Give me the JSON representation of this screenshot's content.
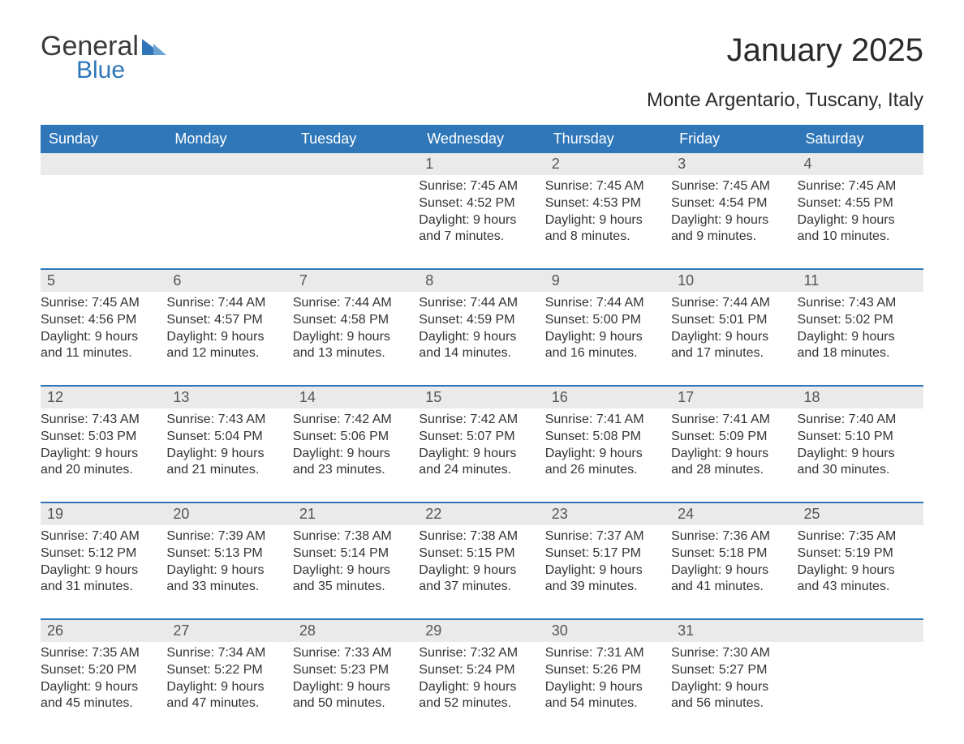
{
  "logo": {
    "word1": "General",
    "word2": "Blue"
  },
  "title": "January 2025",
  "location": "Monte Argentario, Tuscany, Italy",
  "colors": {
    "header_bg": "#2f77b9",
    "header_text": "#ffffff",
    "daynum_bg": "#eaeaea",
    "text": "#333333",
    "border_top": "#2f77b9"
  },
  "day_headers": [
    "Sunday",
    "Monday",
    "Tuesday",
    "Wednesday",
    "Thursday",
    "Friday",
    "Saturday"
  ],
  "weeks": [
    [
      {
        "num": "",
        "lines": []
      },
      {
        "num": "",
        "lines": []
      },
      {
        "num": "",
        "lines": []
      },
      {
        "num": "1",
        "lines": [
          "Sunrise: 7:45 AM",
          "Sunset: 4:52 PM",
          "Daylight: 9 hours",
          "and 7 minutes."
        ]
      },
      {
        "num": "2",
        "lines": [
          "Sunrise: 7:45 AM",
          "Sunset: 4:53 PM",
          "Daylight: 9 hours",
          "and 8 minutes."
        ]
      },
      {
        "num": "3",
        "lines": [
          "Sunrise: 7:45 AM",
          "Sunset: 4:54 PM",
          "Daylight: 9 hours",
          "and 9 minutes."
        ]
      },
      {
        "num": "4",
        "lines": [
          "Sunrise: 7:45 AM",
          "Sunset: 4:55 PM",
          "Daylight: 9 hours",
          "and 10 minutes."
        ]
      }
    ],
    [
      {
        "num": "5",
        "lines": [
          "Sunrise: 7:45 AM",
          "Sunset: 4:56 PM",
          "Daylight: 9 hours",
          "and 11 minutes."
        ]
      },
      {
        "num": "6",
        "lines": [
          "Sunrise: 7:44 AM",
          "Sunset: 4:57 PM",
          "Daylight: 9 hours",
          "and 12 minutes."
        ]
      },
      {
        "num": "7",
        "lines": [
          "Sunrise: 7:44 AM",
          "Sunset: 4:58 PM",
          "Daylight: 9 hours",
          "and 13 minutes."
        ]
      },
      {
        "num": "8",
        "lines": [
          "Sunrise: 7:44 AM",
          "Sunset: 4:59 PM",
          "Daylight: 9 hours",
          "and 14 minutes."
        ]
      },
      {
        "num": "9",
        "lines": [
          "Sunrise: 7:44 AM",
          "Sunset: 5:00 PM",
          "Daylight: 9 hours",
          "and 16 minutes."
        ]
      },
      {
        "num": "10",
        "lines": [
          "Sunrise: 7:44 AM",
          "Sunset: 5:01 PM",
          "Daylight: 9 hours",
          "and 17 minutes."
        ]
      },
      {
        "num": "11",
        "lines": [
          "Sunrise: 7:43 AM",
          "Sunset: 5:02 PM",
          "Daylight: 9 hours",
          "and 18 minutes."
        ]
      }
    ],
    [
      {
        "num": "12",
        "lines": [
          "Sunrise: 7:43 AM",
          "Sunset: 5:03 PM",
          "Daylight: 9 hours",
          "and 20 minutes."
        ]
      },
      {
        "num": "13",
        "lines": [
          "Sunrise: 7:43 AM",
          "Sunset: 5:04 PM",
          "Daylight: 9 hours",
          "and 21 minutes."
        ]
      },
      {
        "num": "14",
        "lines": [
          "Sunrise: 7:42 AM",
          "Sunset: 5:06 PM",
          "Daylight: 9 hours",
          "and 23 minutes."
        ]
      },
      {
        "num": "15",
        "lines": [
          "Sunrise: 7:42 AM",
          "Sunset: 5:07 PM",
          "Daylight: 9 hours",
          "and 24 minutes."
        ]
      },
      {
        "num": "16",
        "lines": [
          "Sunrise: 7:41 AM",
          "Sunset: 5:08 PM",
          "Daylight: 9 hours",
          "and 26 minutes."
        ]
      },
      {
        "num": "17",
        "lines": [
          "Sunrise: 7:41 AM",
          "Sunset: 5:09 PM",
          "Daylight: 9 hours",
          "and 28 minutes."
        ]
      },
      {
        "num": "18",
        "lines": [
          "Sunrise: 7:40 AM",
          "Sunset: 5:10 PM",
          "Daylight: 9 hours",
          "and 30 minutes."
        ]
      }
    ],
    [
      {
        "num": "19",
        "lines": [
          "Sunrise: 7:40 AM",
          "Sunset: 5:12 PM",
          "Daylight: 9 hours",
          "and 31 minutes."
        ]
      },
      {
        "num": "20",
        "lines": [
          "Sunrise: 7:39 AM",
          "Sunset: 5:13 PM",
          "Daylight: 9 hours",
          "and 33 minutes."
        ]
      },
      {
        "num": "21",
        "lines": [
          "Sunrise: 7:38 AM",
          "Sunset: 5:14 PM",
          "Daylight: 9 hours",
          "and 35 minutes."
        ]
      },
      {
        "num": "22",
        "lines": [
          "Sunrise: 7:38 AM",
          "Sunset: 5:15 PM",
          "Daylight: 9 hours",
          "and 37 minutes."
        ]
      },
      {
        "num": "23",
        "lines": [
          "Sunrise: 7:37 AM",
          "Sunset: 5:17 PM",
          "Daylight: 9 hours",
          "and 39 minutes."
        ]
      },
      {
        "num": "24",
        "lines": [
          "Sunrise: 7:36 AM",
          "Sunset: 5:18 PM",
          "Daylight: 9 hours",
          "and 41 minutes."
        ]
      },
      {
        "num": "25",
        "lines": [
          "Sunrise: 7:35 AM",
          "Sunset: 5:19 PM",
          "Daylight: 9 hours",
          "and 43 minutes."
        ]
      }
    ],
    [
      {
        "num": "26",
        "lines": [
          "Sunrise: 7:35 AM",
          "Sunset: 5:20 PM",
          "Daylight: 9 hours",
          "and 45 minutes."
        ]
      },
      {
        "num": "27",
        "lines": [
          "Sunrise: 7:34 AM",
          "Sunset: 5:22 PM",
          "Daylight: 9 hours",
          "and 47 minutes."
        ]
      },
      {
        "num": "28",
        "lines": [
          "Sunrise: 7:33 AM",
          "Sunset: 5:23 PM",
          "Daylight: 9 hours",
          "and 50 minutes."
        ]
      },
      {
        "num": "29",
        "lines": [
          "Sunrise: 7:32 AM",
          "Sunset: 5:24 PM",
          "Daylight: 9 hours",
          "and 52 minutes."
        ]
      },
      {
        "num": "30",
        "lines": [
          "Sunrise: 7:31 AM",
          "Sunset: 5:26 PM",
          "Daylight: 9 hours",
          "and 54 minutes."
        ]
      },
      {
        "num": "31",
        "lines": [
          "Sunrise: 7:30 AM",
          "Sunset: 5:27 PM",
          "Daylight: 9 hours",
          "and 56 minutes."
        ]
      },
      {
        "num": "",
        "lines": []
      }
    ]
  ]
}
